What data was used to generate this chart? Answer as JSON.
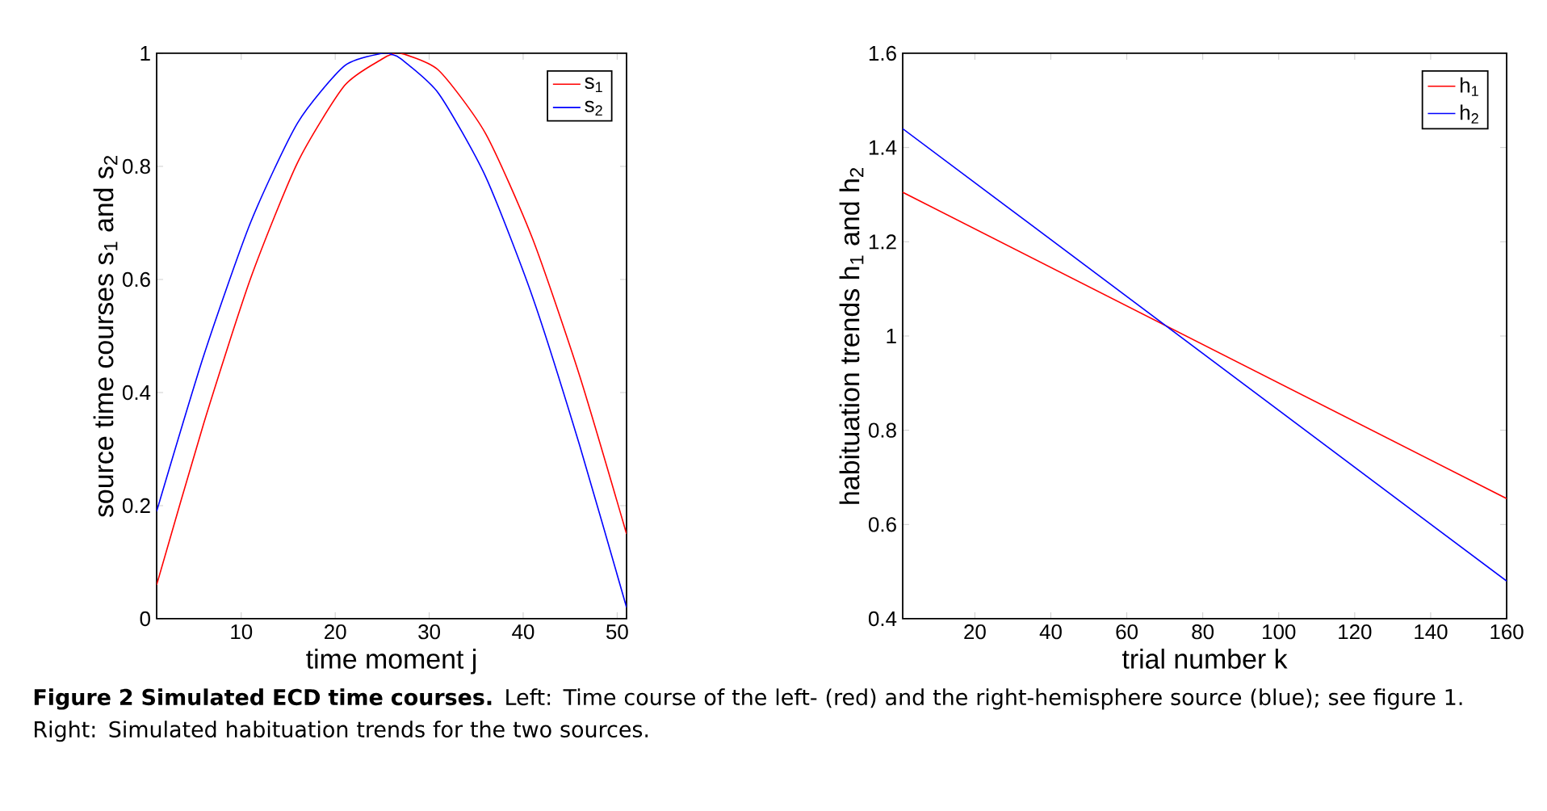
{
  "chart_data": [
    {
      "type": "line",
      "xlabel": "time moment j",
      "ylabel": "source time courses s$_{1}$ and s$_{2}$",
      "x": [
        1,
        6,
        11,
        16,
        21,
        25,
        26,
        27,
        31,
        36,
        41,
        46,
        51
      ],
      "series": [
        {
          "name": "s$_{1}$",
          "color": "#ff0000",
          "values": [
            0.06,
            0.345,
            0.602,
            0.807,
            0.943,
            0.99,
            0.998,
            1.0,
            0.97,
            0.858,
            0.672,
            0.43,
            0.15
          ]
        },
        {
          "name": "s$_{2}$",
          "color": "#0000ff",
          "values": [
            0.19,
            0.465,
            0.701,
            0.877,
            0.978,
            1.0,
            0.998,
            0.99,
            0.929,
            0.782,
            0.569,
            0.307,
            0.02
          ]
        }
      ],
      "xlim": [
        1,
        51
      ],
      "ylim": [
        0,
        1
      ],
      "xticks": [
        10,
        20,
        30,
        40,
        50
      ],
      "yticks": [
        0,
        0.2,
        0.4,
        0.6,
        0.8,
        1
      ],
      "legend": "top right",
      "annotations": [
        "**Figure 2 Simulated ECD time courses.** Left: Time course of the left- (red) and the right-hemisphere source (blue); see figure 1. Right: Simulated habituation trends for the two sources."
      ]
    },
    {
      "type": "line",
      "xlabel": "trial number k",
      "ylabel": "habituation trends h$_{1}$ and h$_{2}$",
      "x": [
        1,
        160
      ],
      "series": [
        {
          "name": "h$_{1}$",
          "color": "#ff0000",
          "values": [
            1.305,
            0.655
          ]
        },
        {
          "name": "h$_{2}$",
          "color": "#0000ff",
          "values": [
            1.44,
            0.48
          ]
        }
      ],
      "xlim": [
        1,
        160
      ],
      "ylim": [
        0.4,
        1.6
      ],
      "xticks": [
        20,
        40,
        60,
        80,
        100,
        120,
        140,
        160
      ],
      "yticks": [
        0.4,
        0.6,
        0.8,
        1,
        1.2,
        1.4,
        1.6
      ],
      "legend": "top right"
    }
  ]
}
